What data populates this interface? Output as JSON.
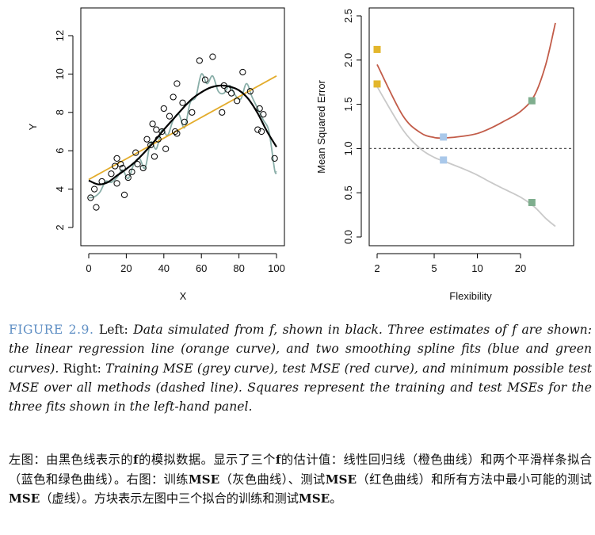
{
  "chart_data": [
    {
      "type": "scatter",
      "xlabel": "X",
      "ylabel": "Y",
      "xlim": [
        0,
        100
      ],
      "ylim": [
        1.5,
        13
      ],
      "x_ticks": [
        0,
        20,
        40,
        60,
        80,
        100
      ],
      "y_ticks": [
        2,
        4,
        6,
        8,
        10,
        12
      ],
      "grid": false,
      "points": [
        [
          1,
          3.55
        ],
        [
          3,
          4.0
        ],
        [
          4,
          3.05
        ],
        [
          7,
          4.4
        ],
        [
          12,
          4.8
        ],
        [
          14,
          5.2
        ],
        [
          15,
          4.3
        ],
        [
          15,
          5.6
        ],
        [
          17,
          5.3
        ],
        [
          18,
          5.1
        ],
        [
          19,
          3.7
        ],
        [
          21,
          4.6
        ],
        [
          23,
          4.9
        ],
        [
          25,
          5.9
        ],
        [
          26,
          5.3
        ],
        [
          29,
          5.1
        ],
        [
          31,
          6.6
        ],
        [
          33,
          6.3
        ],
        [
          34,
          7.4
        ],
        [
          35,
          5.7
        ],
        [
          36,
          7.1
        ],
        [
          37,
          6.6
        ],
        [
          39,
          7.0
        ],
        [
          40,
          8.2
        ],
        [
          41,
          6.1
        ],
        [
          43,
          7.8
        ],
        [
          45,
          8.8
        ],
        [
          46,
          7.0
        ],
        [
          47,
          6.9
        ],
        [
          47,
          9.5
        ],
        [
          50,
          8.5
        ],
        [
          51,
          7.5
        ],
        [
          55,
          8.0
        ],
        [
          59,
          10.7
        ],
        [
          62,
          9.7
        ],
        [
          66,
          10.9
        ],
        [
          71,
          8.0
        ],
        [
          72,
          9.4
        ],
        [
          74,
          9.2
        ],
        [
          76,
          9.0
        ],
        [
          79,
          8.6
        ],
        [
          82,
          10.1
        ],
        [
          86,
          9.1
        ],
        [
          90,
          7.1
        ],
        [
          91,
          8.2
        ],
        [
          92,
          7.0
        ],
        [
          93,
          7.9
        ],
        [
          99,
          5.6
        ]
      ],
      "series": [
        {
          "color": "#000000",
          "x": [
            0,
            5,
            10,
            15,
            20,
            25,
            30,
            35,
            40,
            45,
            50,
            55,
            60,
            65,
            70,
            75,
            80,
            85,
            90,
            95,
            100
          ],
          "y": [
            4.45,
            4.25,
            4.35,
            4.7,
            5.05,
            5.45,
            5.95,
            6.5,
            7.1,
            7.65,
            8.2,
            8.7,
            9.05,
            9.3,
            9.4,
            9.35,
            9.15,
            8.7,
            7.95,
            7.0,
            6.2
          ]
        },
        {
          "color": "#e3ac2c",
          "x": [
            0,
            100
          ],
          "y": [
            4.5,
            9.9
          ]
        },
        {
          "color": "#89aea8",
          "x": [
            0,
            3,
            6,
            9,
            12,
            15,
            18,
            21,
            24,
            27,
            30,
            33,
            36,
            39,
            42,
            45,
            48,
            51,
            54,
            57,
            60,
            63,
            66,
            69,
            72,
            75,
            78,
            81,
            84,
            87,
            90,
            93,
            96,
            99,
            100
          ],
          "y": [
            3.55,
            3.6,
            3.85,
            4.4,
            4.35,
            4.6,
            5.0,
            4.55,
            5.3,
            5.6,
            5.1,
            6.45,
            6.1,
            7.1,
            6.8,
            7.6,
            7.9,
            7.2,
            8.5,
            8.8,
            10.0,
            9.5,
            9.9,
            9.1,
            9.0,
            9.4,
            8.9,
            8.7,
            9.5,
            8.8,
            8.2,
            7.6,
            7.0,
            5.0,
            4.9
          ]
        }
      ]
    },
    {
      "type": "line",
      "xlabel": "Flexibility",
      "ylabel": "Mean Squared Error",
      "x_scale": "log",
      "xlim": [
        2,
        36
      ],
      "ylim": [
        0,
        2.5
      ],
      "x_ticks": [
        2,
        5,
        10,
        20
      ],
      "y_ticks": [
        "0.0",
        "0.5",
        "1.0",
        "1.5",
        "2.0",
        "2.5"
      ],
      "grid": false,
      "series": [
        {
          "color": "#c25c49",
          "x": [
            2,
            3,
            4,
            5,
            6,
            8,
            10,
            12,
            15,
            20,
            25,
            30,
            35
          ],
          "y": [
            1.95,
            1.38,
            1.18,
            1.125,
            1.12,
            1.14,
            1.17,
            1.22,
            1.3,
            1.42,
            1.6,
            1.95,
            2.42
          ]
        },
        {
          "color": "#c9c9c9",
          "x": [
            2,
            3,
            4,
            5,
            6,
            8,
            10,
            12,
            15,
            20,
            25,
            30,
            35
          ],
          "y": [
            1.7,
            1.22,
            1.0,
            0.9,
            0.85,
            0.77,
            0.7,
            0.63,
            0.55,
            0.45,
            0.34,
            0.21,
            0.12
          ]
        },
        {
          "color": "#555555",
          "dash": true,
          "x": [
            2,
            36
          ],
          "y": [
            1.0,
            1.0
          ]
        }
      ],
      "squares": [
        {
          "x": 2,
          "y": 2.12,
          "color": "#e3b62c"
        },
        {
          "x": 2,
          "y": 1.73,
          "color": "#e3b62c"
        },
        {
          "x": 5.8,
          "y": 1.13,
          "color": "#a9c8ea"
        },
        {
          "x": 5.8,
          "y": 0.87,
          "color": "#a9c8ea"
        },
        {
          "x": 24,
          "y": 1.54,
          "color": "#7fae8e"
        },
        {
          "x": 24,
          "y": 0.39,
          "color": "#7fae8e"
        }
      ]
    }
  ],
  "caption_en": {
    "label": "FIGURE 2.9.",
    "left": "Left:",
    "desc1": "Data simulated from f, shown in black. Three estimates of f are shown: the linear regression line (orange curve), and two smoothing spline fits (blue and green curves).",
    "right": "Right:",
    "desc2": "Training MSE (grey curve), test MSE (red curve), and minimum possible test MSE over all methods (dashed line). Squares represent the training and test MSEs for the three fits shown in the left-hand panel."
  },
  "caption_zh": {
    "p1": "左图：由黑色线表示的",
    "f1": "f",
    "p2": "的模拟数据。显示了三个",
    "f2": "f",
    "p3": "的估计值：线性回归线（橙色曲线）和两个平滑样条拟合（蓝色和绿色曲线）。右图：训练",
    "mse1": "MSE",
    "p4": "（灰色曲线）、测试",
    "mse2": "MSE",
    "p5": "（红色曲线）和所有方法中最小可能的测试",
    "mse3": "MSE",
    "p6": "（虚线）。方块表示左图中三个拟合的训练和测试",
    "mse4": "MSE",
    "p7": "。"
  }
}
